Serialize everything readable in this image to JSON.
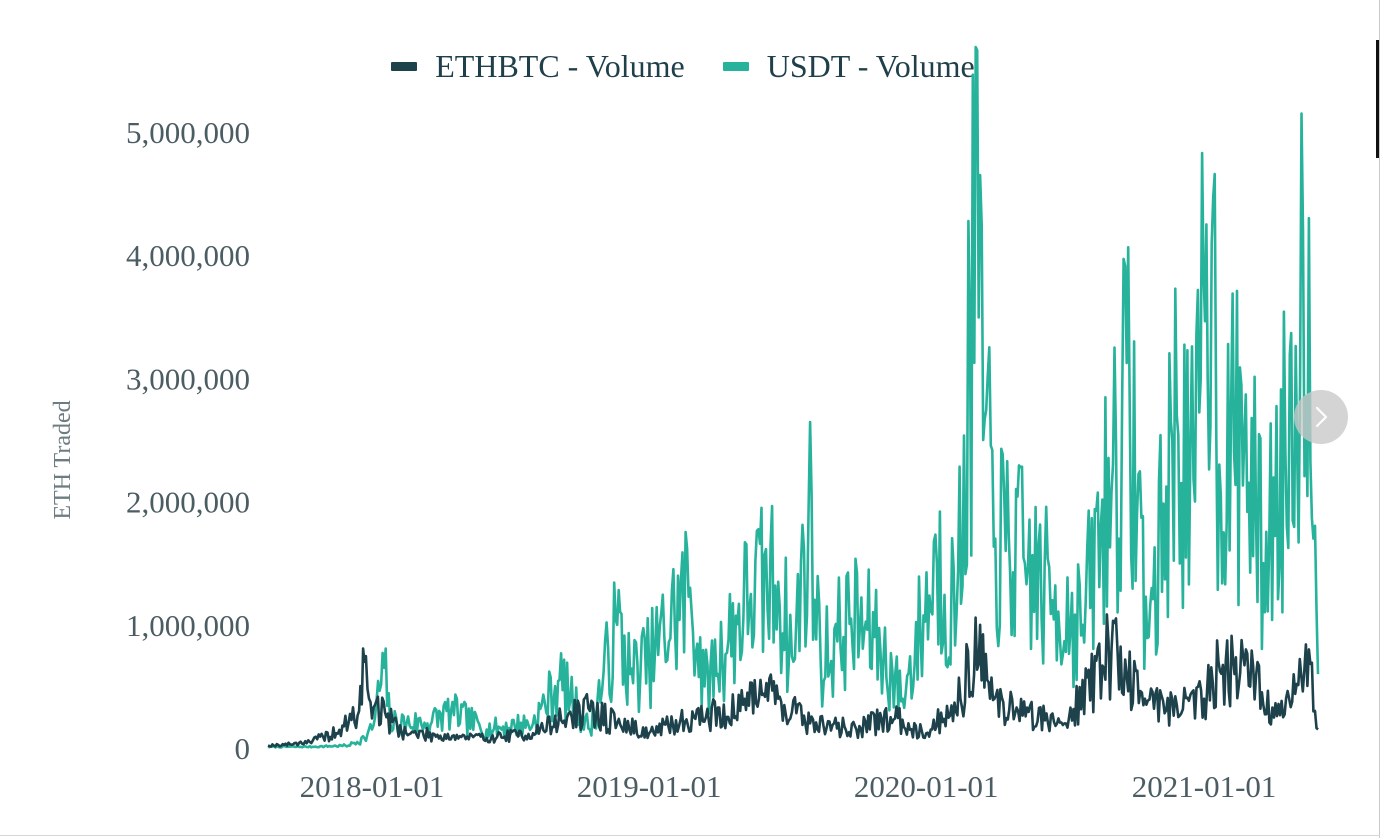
{
  "colors": {
    "ethbtc": "#1d424c",
    "usdt": "#27b39b",
    "tick_text": "#4b5d63",
    "axis_title": "#6d7c80"
  },
  "nav": {
    "next_icon": "chevron-right-icon"
  },
  "chart_data": {
    "type": "line",
    "title": "",
    "xlabel": "",
    "ylabel": "ETH Traded",
    "x_range": [
      "2017-08-17",
      "2021-05-31"
    ],
    "ylim": [
      0,
      5000000
    ],
    "y_ticks": [
      0,
      1000000,
      2000000,
      3000000,
      4000000,
      5000000
    ],
    "y_tick_labels": [
      "0",
      "1,000,000",
      "2,000,000",
      "3,000,000",
      "4,000,000",
      "5,000,000"
    ],
    "x_ticks": [
      "2018-01-01",
      "2019-01-01",
      "2020-01-01",
      "2021-01-01"
    ],
    "x_tick_labels": [
      "2018-01-01",
      "2019-01-01",
      "2020-01-01",
      "2021-01-01"
    ],
    "grid": false,
    "legend_position": "top-center",
    "series": [
      {
        "name": "ETHBTC - Volume",
        "color": "#1d424c",
        "points": [
          [
            "2017-08-17",
            20000
          ],
          [
            "2017-09-15",
            30000
          ],
          [
            "2017-10-15",
            60000
          ],
          [
            "2017-11-15",
            120000
          ],
          [
            "2017-12-01",
            200000
          ],
          [
            "2017-12-15",
            300000
          ],
          [
            "2017-12-22",
            700000
          ],
          [
            "2017-12-28",
            400000
          ],
          [
            "2018-01-05",
            350000
          ],
          [
            "2018-01-20",
            250000
          ],
          [
            "2018-02-15",
            120000
          ],
          [
            "2018-04-01",
            100000
          ],
          [
            "2018-06-01",
            80000
          ],
          [
            "2018-08-01",
            120000
          ],
          [
            "2018-09-15",
            250000
          ],
          [
            "2018-10-15",
            300000
          ],
          [
            "2018-11-20",
            200000
          ],
          [
            "2019-01-01",
            120000
          ],
          [
            "2019-03-01",
            250000
          ],
          [
            "2019-05-01",
            300000
          ],
          [
            "2019-05-20",
            550000
          ],
          [
            "2019-06-20",
            400000
          ],
          [
            "2019-08-01",
            200000
          ],
          [
            "2019-10-01",
            150000
          ],
          [
            "2019-11-15",
            250000
          ],
          [
            "2020-01-01",
            120000
          ],
          [
            "2020-02-15",
            400000
          ],
          [
            "2020-03-12",
            1000000
          ],
          [
            "2020-03-25",
            400000
          ],
          [
            "2020-05-01",
            300000
          ],
          [
            "2020-07-01",
            200000
          ],
          [
            "2020-09-01",
            800000
          ],
          [
            "2020-10-15",
            400000
          ],
          [
            "2020-11-26",
            350000
          ],
          [
            "2021-01-01",
            400000
          ],
          [
            "2021-01-20",
            700000
          ],
          [
            "2021-02-10",
            600000
          ],
          [
            "2021-02-25",
            800000
          ],
          [
            "2021-03-20",
            350000
          ],
          [
            "2021-04-15",
            250000
          ],
          [
            "2021-05-19",
            800000
          ],
          [
            "2021-05-31",
            150000
          ]
        ]
      },
      {
        "name": "USDT - Volume",
        "color": "#27b39b",
        "points": [
          [
            "2017-08-17",
            10000
          ],
          [
            "2017-10-15",
            10000
          ],
          [
            "2017-12-01",
            20000
          ],
          [
            "2017-12-22",
            80000
          ],
          [
            "2018-01-01",
            150000
          ],
          [
            "2018-01-17",
            650000
          ],
          [
            "2018-01-25",
            200000
          ],
          [
            "2018-03-15",
            200000
          ],
          [
            "2018-04-15",
            300000
          ],
          [
            "2018-06-01",
            150000
          ],
          [
            "2018-08-01",
            200000
          ],
          [
            "2018-09-05",
            550000
          ],
          [
            "2018-10-15",
            150000
          ],
          [
            "2018-11-20",
            1000000
          ],
          [
            "2018-12-07",
            600000
          ],
          [
            "2019-01-01",
            700000
          ],
          [
            "2019-02-24",
            1300000
          ],
          [
            "2019-03-15",
            500000
          ],
          [
            "2019-05-15",
            1250000
          ],
          [
            "2019-06-20",
            1350000
          ],
          [
            "2019-07-10",
            700000
          ],
          [
            "2019-07-30",
            1950000
          ],
          [
            "2019-08-15",
            700000
          ],
          [
            "2019-09-24",
            1050000
          ],
          [
            "2019-10-25",
            900000
          ],
          [
            "2019-12-01",
            400000
          ],
          [
            "2020-01-15",
            1500000
          ],
          [
            "2020-02-10",
            1100000
          ],
          [
            "2020-03-12",
            4650000
          ],
          [
            "2020-03-16",
            2500000
          ],
          [
            "2020-04-01",
            1700000
          ],
          [
            "2020-05-10",
            1500000
          ],
          [
            "2020-06-15",
            1200000
          ],
          [
            "2020-07-25",
            1000000
          ],
          [
            "2020-09-03",
            2300000
          ],
          [
            "2020-09-25",
            2800000
          ],
          [
            "2020-10-20",
            900000
          ],
          [
            "2020-11-26",
            2700000
          ],
          [
            "2020-12-20",
            2000000
          ],
          [
            "2021-01-04",
            4250000
          ],
          [
            "2021-01-11",
            4100000
          ],
          [
            "2021-01-21",
            2300000
          ],
          [
            "2021-02-23",
            2550000
          ],
          [
            "2021-03-20",
            1500000
          ],
          [
            "2021-04-18",
            2400000
          ],
          [
            "2021-05-19",
            4300000
          ],
          [
            "2021-05-25",
            1700000
          ],
          [
            "2021-05-31",
            600000
          ]
        ]
      }
    ]
  }
}
